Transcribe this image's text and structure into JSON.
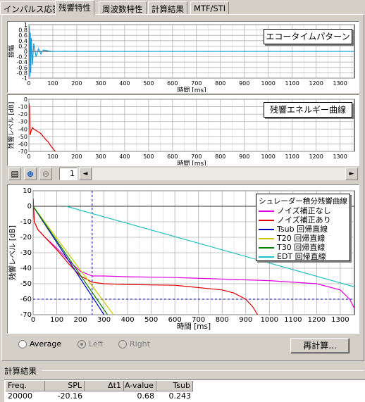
{
  "tabs": [
    "インパルス応答",
    "残響特性",
    "周波数特性",
    "計算結果",
    "MTF/STI"
  ],
  "active_tab": "残響特性",
  "chart_data": [
    {
      "type": "line",
      "title": "エコータイムパターン",
      "xlabel": "時間 [ms]",
      "ylabel": "振幅",
      "xlim": [
        0,
        1360
      ],
      "ylim": [
        -1,
        1
      ],
      "xticks": [
        "0",
        "100",
        "200",
        "300",
        "400",
        "500",
        "600",
        "700",
        "800",
        "900",
        "1000",
        "1100",
        "1200",
        "1300"
      ],
      "yticks": [
        "1",
        "0.8",
        "0.6",
        "0.4",
        "0.2",
        "0",
        "-0.2",
        "-0.4",
        "-0.6",
        "-0.8",
        "-1"
      ],
      "series": [
        {
          "color": "#1a9cd8",
          "x": [
            0,
            2,
            4,
            6,
            8,
            10,
            15,
            20,
            30,
            40,
            50,
            60,
            80,
            100,
            200,
            1360
          ],
          "y": [
            0,
            0.95,
            -0.95,
            0.7,
            -0.8,
            0.5,
            -0.5,
            0.3,
            -0.2,
            0.1,
            -0.1,
            0.05,
            0.02,
            0,
            0,
            0
          ]
        }
      ]
    },
    {
      "type": "line",
      "title": "残響エネルギー曲線",
      "xlabel": "時間 [ms]",
      "ylabel": "残響レベル [dB]",
      "xlim": [
        0,
        1360
      ],
      "ylim": [
        -70,
        0
      ],
      "xticks": [
        "0",
        "100",
        "200",
        "300",
        "400",
        "500",
        "600",
        "700",
        "800",
        "900",
        "1000",
        "1100",
        "1200",
        "1300"
      ],
      "yticks": [
        "0",
        "-10",
        "-20",
        "-30",
        "-40",
        "-50",
        "-60",
        "-70"
      ],
      "series": [
        {
          "color": "#e00000",
          "x": [
            0,
            3,
            5,
            10,
            15,
            20,
            30,
            40,
            50,
            60,
            70,
            80,
            90,
            100,
            110
          ],
          "y": [
            -5,
            -10,
            -48,
            -42,
            -38,
            -40,
            -42,
            -44,
            -46,
            -50,
            -54,
            -57,
            -62,
            -66,
            -70
          ]
        }
      ]
    },
    {
      "type": "line",
      "title": "",
      "xlabel": "時間 [ms]",
      "ylabel": "残響レベル [dB]",
      "xlim": [
        0,
        1360
      ],
      "ylim": [
        -70,
        10
      ],
      "xticks": [
        "0",
        "100",
        "200",
        "300",
        "400",
        "500",
        "600",
        "700",
        "800",
        "900",
        "1000",
        "1100",
        "1200",
        "1300"
      ],
      "yticks": [
        "10",
        "0",
        "-10",
        "-20",
        "-30",
        "-40",
        "-50",
        "-60",
        "-70"
      ],
      "legend_title": "シュレーダー積分残響曲線",
      "legend_position": "top-right",
      "series": [
        {
          "name": "ノイズ補正なし",
          "color": "#e000e0",
          "x": [
            0,
            5,
            20,
            50,
            100,
            150,
            200,
            250,
            300,
            400,
            600,
            800,
            1000,
            1200,
            1300,
            1340,
            1360
          ],
          "y": [
            5,
            -10,
            -15,
            -20,
            -27,
            -35,
            -42,
            -45,
            -45,
            -45.5,
            -46,
            -47,
            -48,
            -50,
            -54,
            -60,
            -66
          ]
        },
        {
          "name": "ノイズ補正あり",
          "color": "#e00000",
          "x": [
            0,
            5,
            20,
            50,
            100,
            150,
            200,
            250,
            300,
            400,
            600,
            800,
            850,
            900,
            930,
            950
          ],
          "y": [
            5,
            -10,
            -15,
            -20,
            -28,
            -37,
            -45,
            -49,
            -50,
            -50.5,
            -51,
            -54,
            -56,
            -60,
            -65,
            -70
          ]
        },
        {
          "name": "Tsub 回帰直線",
          "color": "#0000c0",
          "x": [
            0,
            300
          ],
          "y": [
            0,
            -70
          ]
        },
        {
          "name": "T20 回帰直線",
          "color": "#c8c800",
          "x": [
            0,
            340
          ],
          "y": [
            0,
            -70
          ]
        },
        {
          "name": "T30 回帰直線",
          "color": "#008000",
          "x": [
            0,
            315
          ],
          "y": [
            0,
            -70
          ]
        },
        {
          "name": "EDT 回帰直線",
          "color": "#20c0c0",
          "x": [
            140,
            1360
          ],
          "y": [
            0,
            -52
          ]
        }
      ],
      "annotations": {
        "vline_x": 250,
        "hline_y": -60
      }
    }
  ],
  "toolbar": {
    "page_value": "1",
    "scroll_left": "◄",
    "scroll_right": "►"
  },
  "radios": [
    {
      "label": "Average",
      "selected": false,
      "enabled": true
    },
    {
      "label": "Left",
      "selected": true,
      "enabled": false
    },
    {
      "label": "Right",
      "selected": false,
      "enabled": false
    }
  ],
  "recalc_button": "再計算...",
  "results": {
    "title": "計算結果",
    "columns": [
      "Freq.",
      "SPL",
      "Δt1",
      "A-value",
      "Tsub"
    ],
    "rows": [
      [
        "20000",
        "-20.16",
        "",
        "0.68",
        "0.243"
      ]
    ]
  }
}
